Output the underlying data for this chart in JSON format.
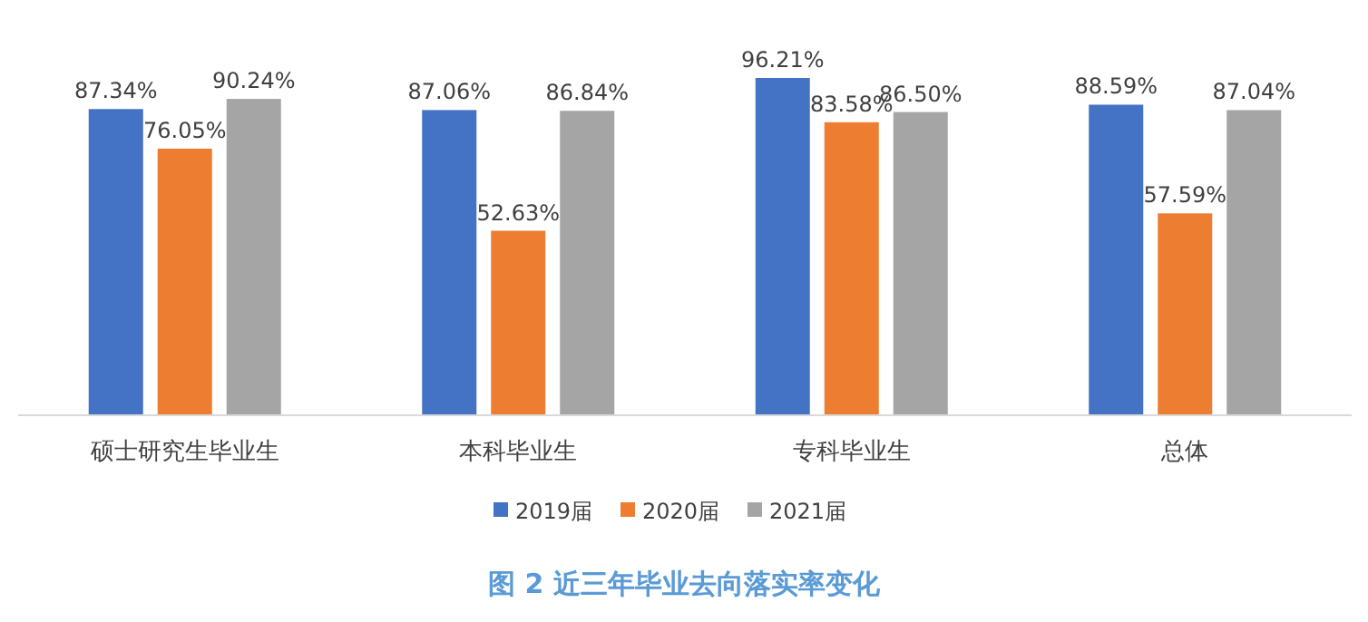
{
  "chart_data": {
    "type": "bar",
    "title": "图 2  近三年毕业去向落实率变化",
    "categories": [
      "硕士研究生毕业生",
      "本科毕业生",
      "专科毕业生",
      "总体"
    ],
    "series": [
      {
        "name": "2019届",
        "color": "#4472c4",
        "values": [
          87.34,
          87.06,
          96.21,
          88.59
        ],
        "value_labels": [
          "87.34%",
          "87.06%",
          "96.21%",
          "88.59%"
        ]
      },
      {
        "name": "2020届",
        "color": "#ed7d31",
        "values": [
          76.05,
          52.63,
          83.58,
          57.59
        ],
        "value_labels": [
          "76.05%",
          "52.63%",
          "83.58%",
          "57.59%"
        ]
      },
      {
        "name": "2021届",
        "color": "#a5a5a5",
        "values": [
          90.24,
          86.84,
          86.5,
          87.04
        ],
        "value_labels": [
          "90.24%",
          "86.84%",
          "86.50%",
          "87.04%"
        ]
      }
    ],
    "legend": "bottom"
  }
}
